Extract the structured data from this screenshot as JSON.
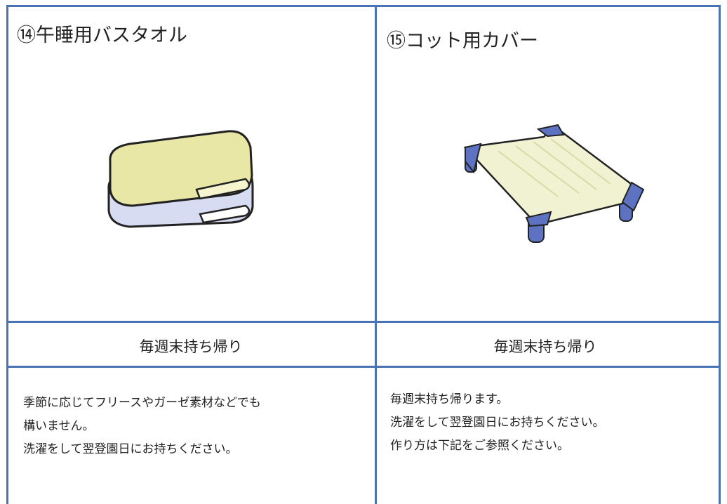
{
  "columns": [
    {
      "title": "⑭午睡用バスタオル",
      "frequency": "毎週末持ち帰り",
      "description": [
        "季節に応じてフリースやガーゼ素材などでも",
        "構いません。",
        "洗濯をして翌登園日にお持ちください。"
      ]
    },
    {
      "title": "⑮コット用カバー",
      "frequency": "毎週末持ち帰り",
      "description": [
        "毎週末持ち帰ります。",
        "洗濯をして翌登園日にお持ちください。",
        "作り方は下記をご参照ください。"
      ]
    }
  ]
}
